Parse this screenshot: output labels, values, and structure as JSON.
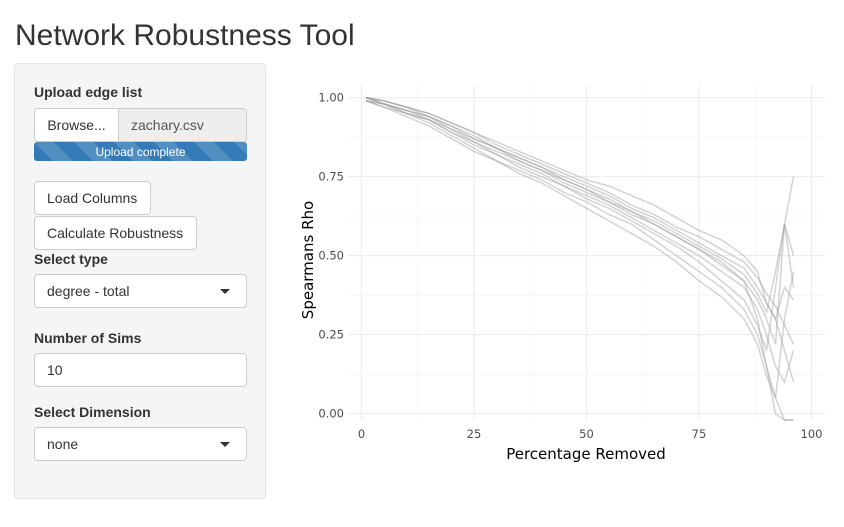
{
  "app": {
    "title": "Network Robustness Tool"
  },
  "sidebar": {
    "upload": {
      "label": "Upload edge list",
      "browse_label": "Browse...",
      "file_name": "zachary.csv",
      "progress_text": "Upload complete",
      "progress_fraction": 1.0
    },
    "load_columns_label": "Load Columns",
    "calculate_label": "Calculate Robustness",
    "select_type": {
      "label": "Select type",
      "value": "degree - total"
    },
    "num_sims": {
      "label": "Number of Sims",
      "value": "10"
    },
    "select_dimension": {
      "label": "Select Dimension",
      "value": "none"
    }
  },
  "chart_data": {
    "type": "line",
    "xlabel": "Percentage Removed",
    "ylabel": "Spearmans Rho",
    "xlim": [
      -3,
      103
    ],
    "ylim": [
      -0.02,
      1.04
    ],
    "xticks": [
      0,
      25,
      50,
      75,
      100
    ],
    "yticks": [
      0,
      0.25,
      0.5,
      0.75,
      1.0
    ],
    "xtick_labels": [
      "0",
      "25",
      "50",
      "75",
      "100"
    ],
    "ytick_labels": [
      "0.00",
      "0.25",
      "0.50",
      "0.75",
      "1.00"
    ],
    "grid": true,
    "line_color": "#9e9e9e",
    "x": [
      1,
      5,
      10,
      15,
      20,
      25,
      30,
      35,
      40,
      45,
      50,
      55,
      60,
      65,
      70,
      75,
      80,
      85,
      88,
      90,
      92,
      94,
      96
    ],
    "series": [
      {
        "values": [
          1.0,
          0.99,
          0.97,
          0.95,
          0.92,
          0.89,
          0.86,
          0.83,
          0.8,
          0.77,
          0.74,
          0.72,
          0.69,
          0.66,
          0.62,
          0.58,
          0.55,
          0.5,
          0.45,
          0.35,
          0.3,
          0.2,
          0.1
        ]
      },
      {
        "values": [
          1.0,
          0.98,
          0.96,
          0.94,
          0.9,
          0.86,
          0.83,
          0.8,
          0.77,
          0.73,
          0.7,
          0.67,
          0.63,
          0.6,
          0.56,
          0.52,
          0.48,
          0.42,
          0.3,
          0.15,
          0.0,
          -0.02,
          -0.02
        ]
      },
      {
        "values": [
          0.99,
          0.98,
          0.95,
          0.93,
          0.89,
          0.85,
          0.82,
          0.78,
          0.75,
          0.72,
          0.68,
          0.65,
          0.61,
          0.57,
          0.53,
          0.48,
          0.42,
          0.36,
          0.28,
          0.2,
          0.4,
          0.6,
          0.75
        ]
      },
      {
        "values": [
          1.0,
          0.99,
          0.97,
          0.94,
          0.91,
          0.88,
          0.84,
          0.81,
          0.78,
          0.75,
          0.72,
          0.69,
          0.65,
          0.62,
          0.58,
          0.54,
          0.5,
          0.46,
          0.4,
          0.35,
          0.3,
          0.4,
          0.36
        ]
      },
      {
        "values": [
          0.99,
          0.97,
          0.95,
          0.92,
          0.88,
          0.84,
          0.8,
          0.77,
          0.74,
          0.7,
          0.67,
          0.63,
          0.6,
          0.55,
          0.5,
          0.45,
          0.4,
          0.33,
          0.25,
          0.15,
          0.05,
          -0.02,
          -0.02
        ]
      },
      {
        "values": [
          1.0,
          0.98,
          0.96,
          0.93,
          0.9,
          0.87,
          0.84,
          0.8,
          0.77,
          0.74,
          0.71,
          0.68,
          0.64,
          0.61,
          0.57,
          0.53,
          0.49,
          0.44,
          0.38,
          0.32,
          0.45,
          0.6,
          0.5
        ]
      },
      {
        "values": [
          0.99,
          0.98,
          0.95,
          0.93,
          0.89,
          0.86,
          0.82,
          0.79,
          0.76,
          0.72,
          0.69,
          0.66,
          0.62,
          0.58,
          0.54,
          0.5,
          0.45,
          0.4,
          0.33,
          0.25,
          0.15,
          0.1,
          0.2
        ]
      },
      {
        "values": [
          1.0,
          0.99,
          0.97,
          0.95,
          0.92,
          0.89,
          0.85,
          0.82,
          0.79,
          0.76,
          0.73,
          0.7,
          0.66,
          0.63,
          0.59,
          0.56,
          0.52,
          0.48,
          0.43,
          0.38,
          0.34,
          0.28,
          0.22
        ]
      },
      {
        "values": [
          0.99,
          0.97,
          0.94,
          0.91,
          0.87,
          0.83,
          0.8,
          0.76,
          0.73,
          0.69,
          0.65,
          0.61,
          0.57,
          0.53,
          0.48,
          0.42,
          0.37,
          0.3,
          0.22,
          0.12,
          0.05,
          0.3,
          0.45
        ]
      },
      {
        "values": [
          1.0,
          0.98,
          0.96,
          0.94,
          0.91,
          0.87,
          0.84,
          0.81,
          0.78,
          0.74,
          0.71,
          0.67,
          0.64,
          0.6,
          0.56,
          0.52,
          0.47,
          0.42,
          0.36,
          0.3,
          0.22,
          0.6,
          0.4
        ]
      }
    ]
  }
}
